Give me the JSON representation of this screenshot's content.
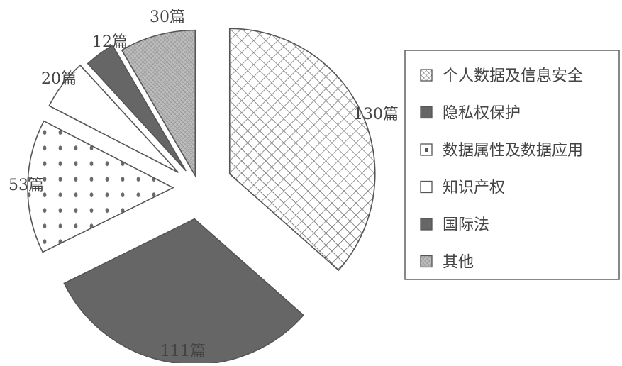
{
  "chart_data": {
    "type": "pie",
    "exploded": true,
    "legend_position": "right",
    "unit": "篇",
    "slices": [
      {
        "name": "个人数据及信息安全",
        "value": 130,
        "label": "130篇",
        "pattern": "crosshatch"
      },
      {
        "name": "隐私权保护",
        "value": 111,
        "label": "111篇",
        "pattern": "solid-dark"
      },
      {
        "name": "数据属性及数据应用",
        "value": 53,
        "label": "53篇",
        "pattern": "dots"
      },
      {
        "name": "知识产权",
        "value": 20,
        "label": "20篇",
        "pattern": "blank"
      },
      {
        "name": "国际法",
        "value": 12,
        "label": "12篇",
        "pattern": "solid-dark"
      },
      {
        "name": "其他",
        "value": 30,
        "label": "30篇",
        "pattern": "fine-hatch"
      }
    ],
    "colors": {
      "outline": "#555555",
      "dark_fill": "#666666",
      "hatch": "#6a6a6a",
      "fine_hatch": "#9a9a9a",
      "background": "#ffffff"
    }
  }
}
